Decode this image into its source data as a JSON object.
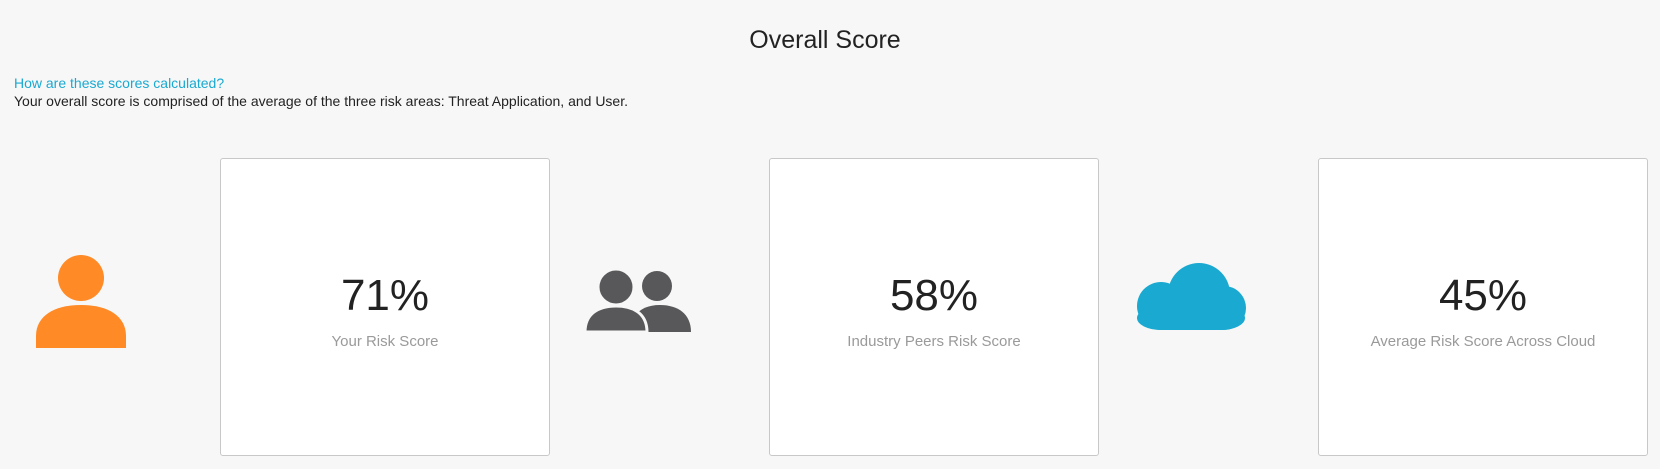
{
  "header": {
    "title": "Overall Score",
    "help_link": "How are these scores calculated?",
    "help_text": "Your overall score is comprised of the average of the three risk areas: Threat Application, and User."
  },
  "colors": {
    "user_icon": "#ff8a26",
    "peers_icon": "#58585a",
    "cloud_icon": "#1aa9d1"
  },
  "scores": [
    {
      "icon": "user-icon",
      "value": "71%",
      "label": "Your Risk Score"
    },
    {
      "icon": "users-group-icon",
      "value": "58%",
      "label": "Industry Peers Risk Score"
    },
    {
      "icon": "cloud-icon",
      "value": "45%",
      "label": "Average Risk Score Across Cloud"
    }
  ]
}
